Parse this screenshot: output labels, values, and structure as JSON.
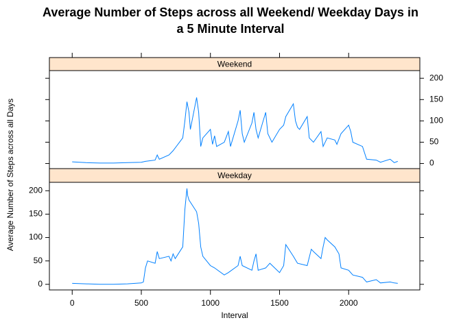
{
  "chart_data": {
    "type": "line",
    "title": "Average Number of Steps across all Weekend/ Weekday Days in a 5 Minute Interval",
    "xlabel": "Interval",
    "ylabel": "Average Number of Steps across all Days",
    "xlim": [
      -165,
      2515
    ],
    "xticks": [
      0,
      500,
      1000,
      1500,
      2000
    ],
    "ylim": [
      -12,
      218
    ],
    "yticks": [
      0,
      50,
      100,
      150,
      200
    ],
    "strip_color": "#ffe5cc",
    "series": [
      {
        "name": "Weekend",
        "color": "#0080ff",
        "x": [
          0,
          100,
          200,
          300,
          400,
          500,
          530,
          600,
          615,
          630,
          700,
          730,
          800,
          815,
          830,
          845,
          855,
          900,
          915,
          930,
          945,
          1000,
          1015,
          1030,
          1045,
          1100,
          1130,
          1145,
          1200,
          1215,
          1230,
          1245,
          1300,
          1315,
          1330,
          1345,
          1400,
          1415,
          1445,
          1500,
          1530,
          1545,
          1600,
          1615,
          1630,
          1645,
          1700,
          1715,
          1745,
          1800,
          1815,
          1845,
          1900,
          1915,
          1945,
          2000,
          2015,
          2030,
          2100,
          2130,
          2200,
          2230,
          2300,
          2330,
          2355
        ],
        "values": [
          4,
          2,
          1,
          1,
          2,
          3,
          5,
          8,
          20,
          10,
          20,
          30,
          60,
          100,
          145,
          120,
          80,
          155,
          120,
          40,
          60,
          80,
          45,
          65,
          40,
          50,
          75,
          40,
          100,
          125,
          70,
          50,
          95,
          120,
          80,
          60,
          120,
          70,
          50,
          80,
          90,
          110,
          140,
          100,
          85,
          80,
          110,
          60,
          50,
          75,
          40,
          60,
          55,
          45,
          70,
          90,
          75,
          50,
          40,
          10,
          8,
          3,
          10,
          2,
          5
        ]
      },
      {
        "name": "Weekday",
        "color": "#0080ff",
        "x": [
          0,
          100,
          200,
          300,
          400,
          500,
          515,
          530,
          545,
          600,
          615,
          630,
          700,
          715,
          730,
          745,
          800,
          815,
          830,
          835,
          845,
          900,
          915,
          930,
          945,
          1000,
          1030,
          1100,
          1130,
          1200,
          1215,
          1230,
          1300,
          1315,
          1330,
          1345,
          1400,
          1430,
          1500,
          1530,
          1545,
          1600,
          1630,
          1700,
          1730,
          1745,
          1800,
          1815,
          1830,
          1845,
          1900,
          1930,
          1945,
          2000,
          2030,
          2100,
          2130,
          2200,
          2230,
          2300,
          2330,
          2355
        ],
        "values": [
          2,
          1,
          0,
          0,
          1,
          3,
          5,
          35,
          50,
          45,
          70,
          55,
          60,
          50,
          65,
          55,
          80,
          160,
          205,
          190,
          180,
          155,
          130,
          80,
          60,
          40,
          35,
          20,
          25,
          40,
          60,
          40,
          30,
          50,
          65,
          30,
          35,
          45,
          25,
          40,
          85,
          60,
          45,
          40,
          75,
          70,
          55,
          80,
          100,
          95,
          80,
          65,
          35,
          30,
          20,
          15,
          5,
          10,
          3,
          5,
          3,
          2
        ]
      }
    ]
  }
}
